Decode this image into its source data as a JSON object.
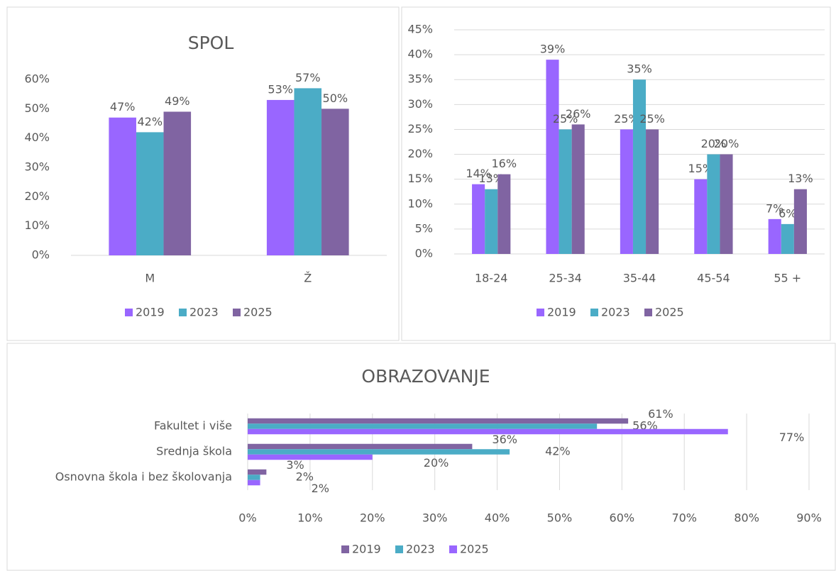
{
  "chart_data": [
    {
      "type": "bar",
      "title": "SPOL",
      "categories": [
        "M",
        "Ž"
      ],
      "series": [
        {
          "name": "2019",
          "color": "#9966ff",
          "values": [
            47,
            53
          ],
          "value_labels": [
            "47%",
            "53%"
          ]
        },
        {
          "name": "2023",
          "color": "#4bacc6",
          "values": [
            42,
            57
          ],
          "value_labels": [
            "42%",
            "57%"
          ]
        },
        {
          "name": "2025",
          "color": "#8064a2",
          "values": [
            49,
            50
          ],
          "value_labels": [
            "49%",
            "50%"
          ]
        }
      ],
      "ylim": [
        0,
        60
      ],
      "yticks": [
        {
          "value": 0,
          "label": "0%"
        },
        {
          "value": 10,
          "label": "10%"
        },
        {
          "value": 20,
          "label": "20%"
        },
        {
          "value": 30,
          "label": "30%"
        },
        {
          "value": 40,
          "label": "40%"
        },
        {
          "value": 50,
          "label": "50%"
        },
        {
          "value": 60,
          "label": "60%"
        }
      ],
      "grid": false,
      "legend": "bottom"
    },
    {
      "type": "bar",
      "categories": [
        "18-24",
        "25-34",
        "35-44",
        "45-54",
        "55 +"
      ],
      "series": [
        {
          "name": "2019",
          "color": "#9966ff",
          "values": [
            14,
            39,
            25,
            15,
            7
          ],
          "value_labels": [
            "14%",
            "39%",
            "25%",
            "15%",
            "7%"
          ]
        },
        {
          "name": "2023",
          "color": "#4bacc6",
          "values": [
            13,
            25,
            35,
            20,
            6
          ],
          "value_labels": [
            "13%",
            "25%",
            "35%",
            "20%",
            "6%"
          ]
        },
        {
          "name": "2025",
          "color": "#8064a2",
          "values": [
            16,
            26,
            25,
            20,
            13
          ],
          "value_labels": [
            "16%",
            "26%",
            "25%",
            "20%",
            "13%"
          ]
        }
      ],
      "ylim": [
        0,
        45
      ],
      "yticks": [
        {
          "value": 0,
          "label": "0%"
        },
        {
          "value": 5,
          "label": "5%"
        },
        {
          "value": 10,
          "label": "10%"
        },
        {
          "value": 15,
          "label": "15%"
        },
        {
          "value": 20,
          "label": "20%"
        },
        {
          "value": 25,
          "label": "25%"
        },
        {
          "value": 30,
          "label": "30%"
        },
        {
          "value": 35,
          "label": "35%"
        },
        {
          "value": 40,
          "label": "40%"
        },
        {
          "value": 45,
          "label": "45%"
        }
      ],
      "grid": true,
      "legend": "bottom"
    },
    {
      "type": "hbar",
      "title": "OBRAZOVANJE",
      "categories": [
        "Osnovna škola i bez školovanja",
        "Srednja škola",
        "Fakultet i više"
      ],
      "series": [
        {
          "name": "2019",
          "color": "#8064a2",
          "values": [
            3,
            36,
            61
          ],
          "value_labels": [
            "3%",
            "36%",
            "61%"
          ]
        },
        {
          "name": "2023",
          "color": "#4bacc6",
          "values": [
            2,
            42,
            56
          ],
          "value_labels": [
            "2%",
            "42%",
            "56%"
          ]
        },
        {
          "name": "2025",
          "color": "#9966ff",
          "values": [
            2,
            20,
            77
          ],
          "value_labels": [
            "2%",
            "20%",
            "77%"
          ]
        }
      ],
      "xlim": [
        0,
        90
      ],
      "xticks": [
        {
          "value": 0,
          "label": "0%"
        },
        {
          "value": 10,
          "label": "10%"
        },
        {
          "value": 20,
          "label": "20%"
        },
        {
          "value": 30,
          "label": "30%"
        },
        {
          "value": 40,
          "label": "40%"
        },
        {
          "value": 50,
          "label": "50%"
        },
        {
          "value": 60,
          "label": "60%"
        },
        {
          "value": 70,
          "label": "70%"
        },
        {
          "value": 80,
          "label": "80%"
        },
        {
          "value": 90,
          "label": "90%"
        }
      ],
      "grid": true,
      "legend": "bottom"
    }
  ]
}
